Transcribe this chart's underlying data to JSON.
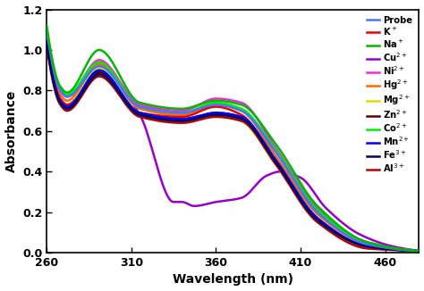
{
  "x_min": 260,
  "x_max": 480,
  "y_min": 0,
  "y_max": 1.2,
  "xlabel": "Wavelength (nm)",
  "ylabel": "Absorbance",
  "xticks": [
    260,
    310,
    360,
    410,
    460
  ],
  "yticks": [
    0,
    0.2,
    0.4,
    0.6,
    0.8,
    1.0,
    1.2
  ],
  "legend": [
    {
      "label": "Probe",
      "color": "#4477FF",
      "lw": 1.8,
      "zorder": 10
    },
    {
      "label": "K$^+$",
      "color": "#EE0000",
      "lw": 1.8,
      "zorder": 9
    },
    {
      "label": "Na$^+$",
      "color": "#00BB00",
      "lw": 1.8,
      "zorder": 11
    },
    {
      "label": "Cu$^{2+}$",
      "color": "#9900CC",
      "lw": 1.8,
      "zorder": 5
    },
    {
      "label": "Ni$^{2+}$",
      "color": "#FF22DD",
      "lw": 1.8,
      "zorder": 8
    },
    {
      "label": "Hg$^{2+}$",
      "color": "#FF6600",
      "lw": 1.8,
      "zorder": 7
    },
    {
      "label": "Mg$^{2+}$",
      "color": "#DDDD00",
      "lw": 1.8,
      "zorder": 6
    },
    {
      "label": "Zn$^{2+}$",
      "color": "#550000",
      "lw": 1.8,
      "zorder": 7
    },
    {
      "label": "Co$^{2+}$",
      "color": "#00EE00",
      "lw": 1.8,
      "zorder": 8
    },
    {
      "label": "Mn$^{2+}$",
      "color": "#0000FF",
      "lw": 1.8,
      "zorder": 9
    },
    {
      "label": "Fe$^{3+}$",
      "color": "#000066",
      "lw": 1.8,
      "zorder": 9
    },
    {
      "label": "Al$^{3+}$",
      "color": "#BB0000",
      "lw": 1.8,
      "zorder": 8
    }
  ],
  "background": "#ffffff"
}
